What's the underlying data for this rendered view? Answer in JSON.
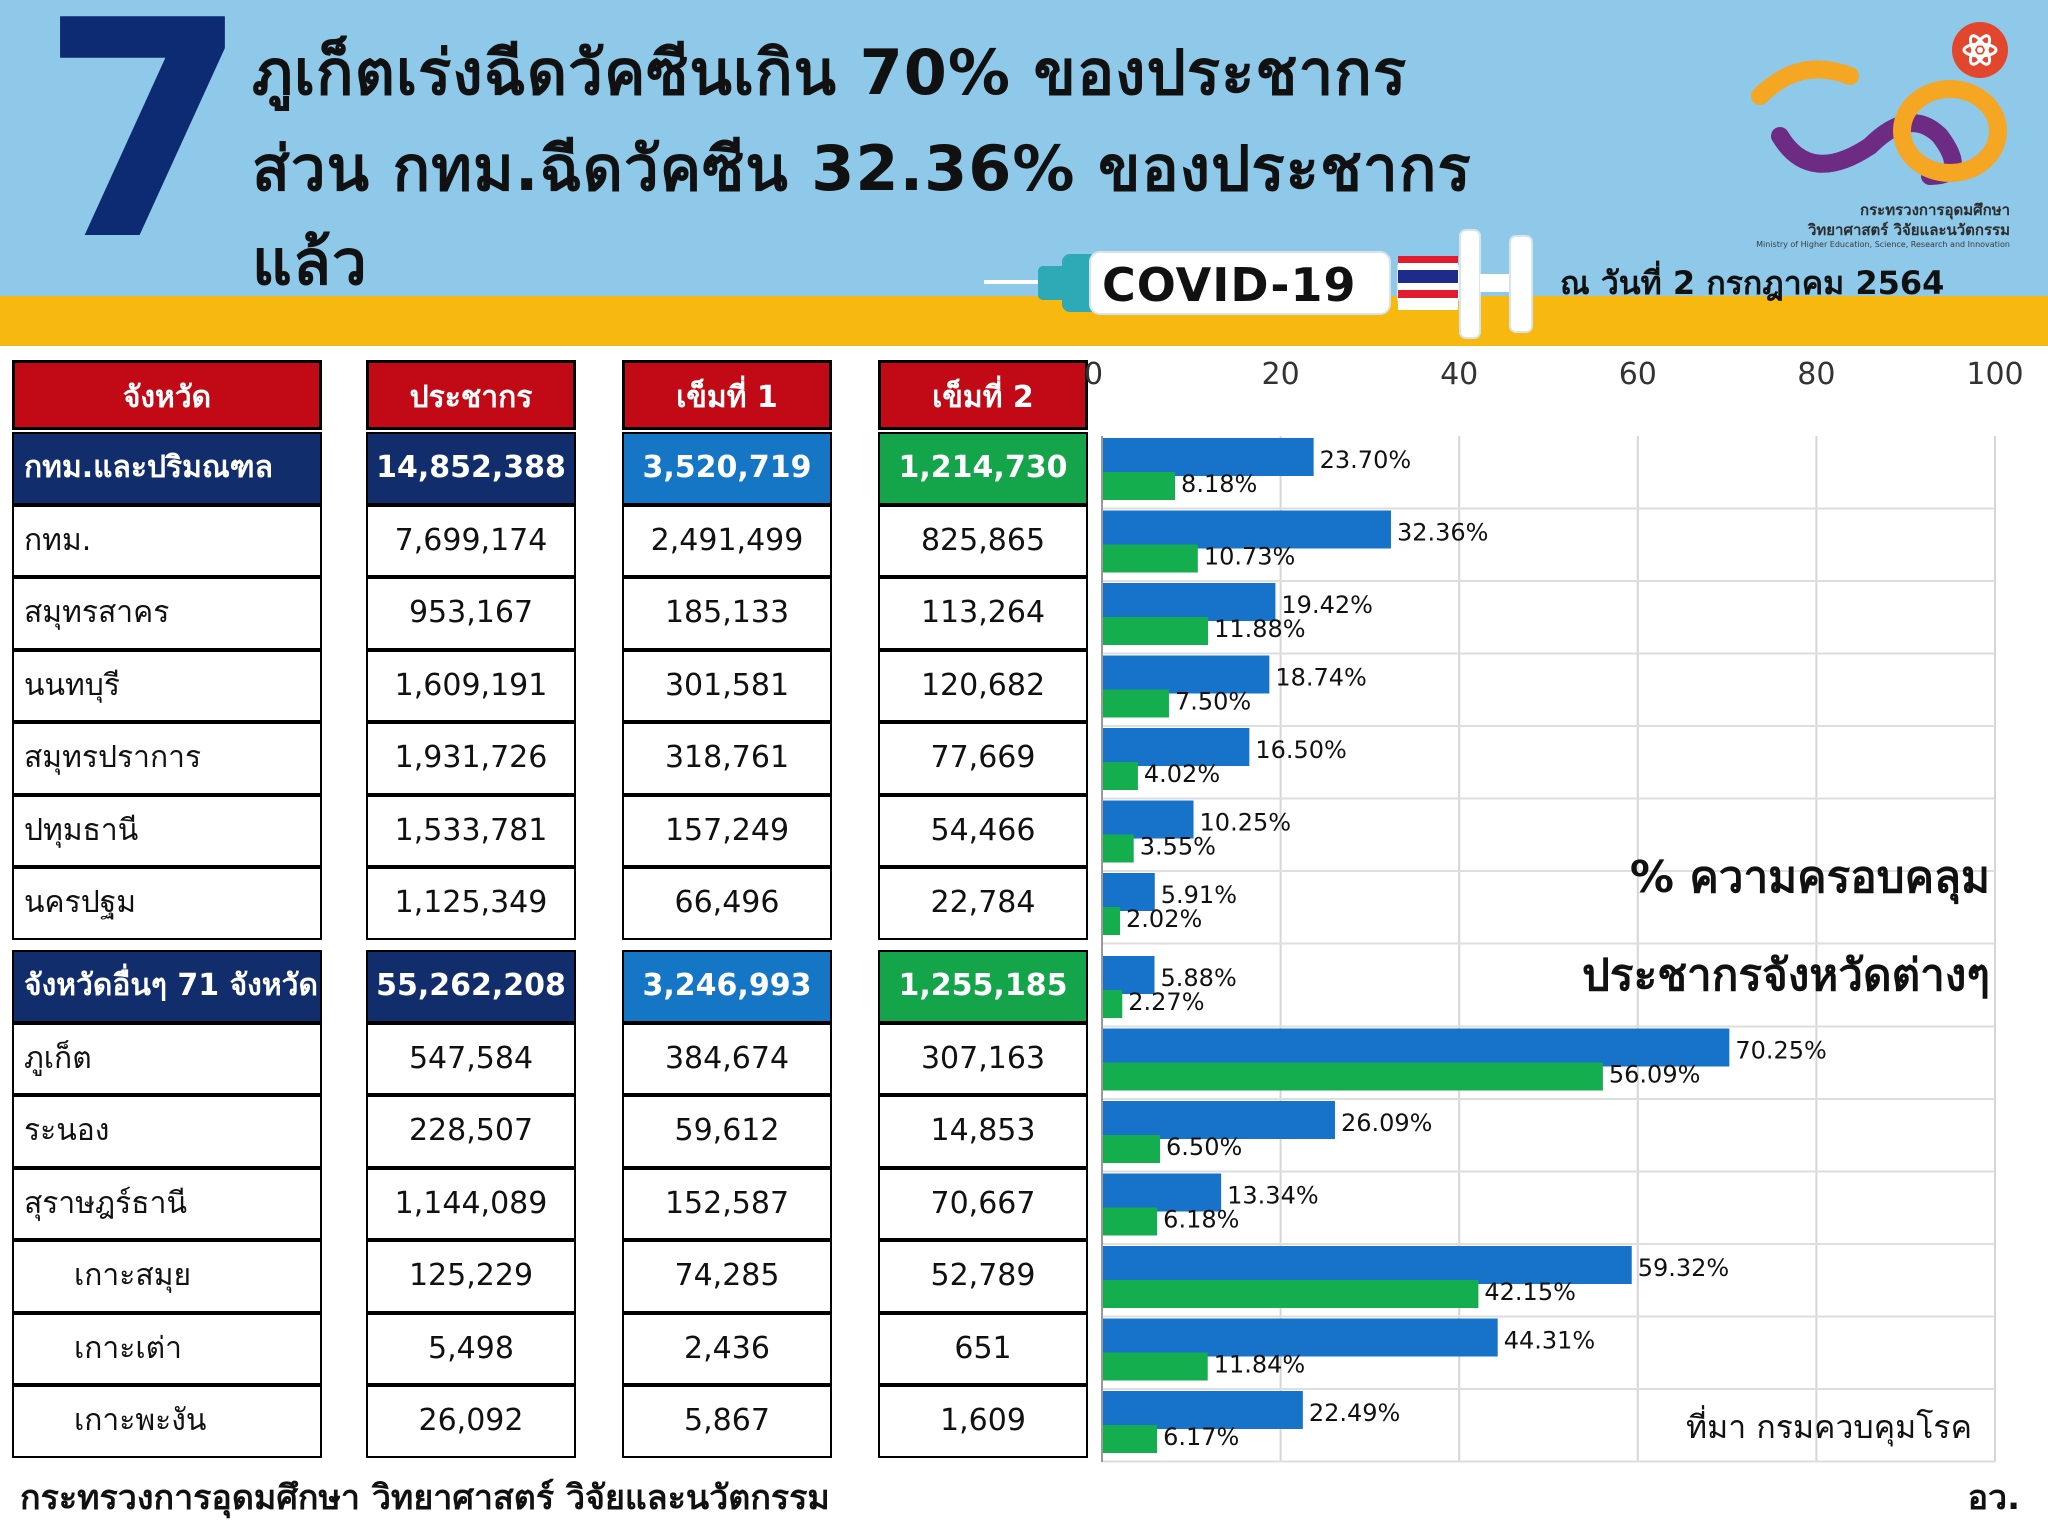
{
  "header": {
    "number": "7",
    "headline_1": "ภูเก็ตเร่งฉีดวัคซีนเกิน 70% ของประชากร",
    "headline_2": "ส่วน กทม.ฉีดวัคซีน 32.36% ของประชากร",
    "headline_3": "แล้ว",
    "covid_label": "COVID-19",
    "date": "ณ วันที่ 2 กรกฎาคม 2564",
    "ministry_th_1": "กระทรวงการอุดมศึกษา",
    "ministry_th_2": "วิทยาศาสตร์ วิจัยและนวัตกรรม",
    "ministry_en": "Ministry of Higher Education, Science, Research and Innovation"
  },
  "table": {
    "headers": [
      "จังหวัด",
      "ประชากร",
      "เข็มที่ 1",
      "เข็มที่ 2"
    ],
    "rows": [
      {
        "name": "กทม.และปริมณฑล",
        "population": "14,852,388",
        "dose1": "3,520,719",
        "dose2": "1,214,730",
        "summary": true
      },
      {
        "name": "กทม.",
        "population": "7,699,174",
        "dose1": "2,491,499",
        "dose2": "825,865"
      },
      {
        "name": "สมุทรสาคร",
        "population": "953,167",
        "dose1": "185,133",
        "dose2": "113,264"
      },
      {
        "name": "นนทบุรี",
        "population": "1,609,191",
        "dose1": "301,581",
        "dose2": "120,682"
      },
      {
        "name": "สมุทรปราการ",
        "population": "1,931,726",
        "dose1": "318,761",
        "dose2": "77,669"
      },
      {
        "name": "ปทุมธานี",
        "population": "1,533,781",
        "dose1": "157,249",
        "dose2": "54,466"
      },
      {
        "name": "นครปฐม",
        "population": "1,125,349",
        "dose1": "66,496",
        "dose2": "22,784"
      },
      {
        "name": "จังหวัดอื่นๆ 71 จังหวัด",
        "population": "55,262,208",
        "dose1": "3,246,993",
        "dose2": "1,255,185",
        "summary": true
      },
      {
        "name": "ภูเก็ต",
        "population": "547,584",
        "dose1": "384,674",
        "dose2": "307,163"
      },
      {
        "name": "ระนอง",
        "population": "228,507",
        "dose1": "59,612",
        "dose2": "14,853"
      },
      {
        "name": "สุราษฎร์ธานี",
        "population": "1,144,089",
        "dose1": "152,587",
        "dose2": "70,667"
      },
      {
        "name": "เกาะสมุย",
        "population": "125,229",
        "dose1": "74,285",
        "dose2": "52,789",
        "indent": true
      },
      {
        "name": "เกาะเต่า",
        "population": "5,498",
        "dose1": "2,436",
        "dose2": "651",
        "indent": true
      },
      {
        "name": "เกาะพะงัน",
        "population": "26,092",
        "dose1": "5,867",
        "dose2": "1,609",
        "indent": true
      }
    ]
  },
  "chart_data": {
    "type": "bar",
    "orientation": "horizontal",
    "x_ticks": [
      "0",
      "20",
      "40",
      "60",
      "80",
      "100"
    ],
    "xlim": [
      0,
      100
    ],
    "grid": true,
    "title_line_1": "% ความครอบคลุม",
    "title_line_2": "ประชากรจังหวัดต่างๆ",
    "categories": [
      "กทม.และปริมณฑล",
      "กทม.",
      "สมุทรสาคร",
      "นนทบุรี",
      "สมุทรปราการ",
      "ปทุมธานี",
      "นครปฐม",
      "จังหวัดอื่นๆ 71 จังหวัด",
      "ภูเก็ต",
      "ระนอง",
      "สุราษฎร์ธานี",
      "เกาะสมุย",
      "เกาะเต่า",
      "เกาะพะงัน"
    ],
    "series": [
      {
        "color": "#1673c9",
        "values": [
          23.7,
          32.36,
          19.42,
          18.74,
          16.5,
          10.25,
          5.91,
          5.88,
          70.25,
          26.09,
          13.34,
          59.32,
          44.31,
          22.49
        ],
        "labels": [
          "23.70%",
          "32.36%",
          "19.42%",
          "18.74%",
          "16.50%",
          "10.25%",
          "5.91%",
          "5.88%",
          "70.25%",
          "26.09%",
          "13.34%",
          "59.32%",
          "44.31%",
          "22.49%"
        ]
      },
      {
        "color": "#14ae4f",
        "values": [
          8.18,
          10.73,
          11.88,
          7.5,
          4.02,
          3.55,
          2.02,
          2.27,
          56.09,
          6.5,
          6.18,
          42.15,
          11.84,
          6.17
        ],
        "labels": [
          "8.18%",
          "10.73%",
          "11.88%",
          "7.50%",
          "4.02%",
          "3.55%",
          "2.02%",
          "2.27%",
          "56.09%",
          "6.50%",
          "6.18%",
          "42.15%",
          "11.84%",
          "6.17%"
        ]
      }
    ]
  },
  "source": "ที่มา กรมควบคุมโรค",
  "footer": {
    "ministry": "กระทรวงการอุดมศึกษา วิทยาศาสตร์ วิจัยและนวัตกรรม",
    "abbr": "อว."
  },
  "colors": {
    "navy": "#122d6b",
    "red": "#c10a16",
    "blue": "#1676c6",
    "green": "#14a44a",
    "yellow": "#f7b80f",
    "sky": "#8ec9ea"
  }
}
